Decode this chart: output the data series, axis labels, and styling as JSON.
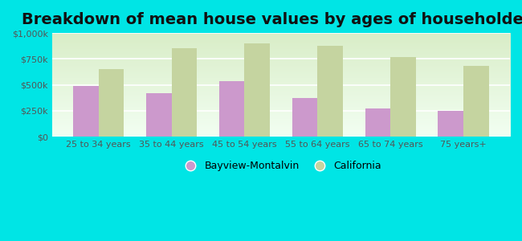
{
  "title": "Breakdown of mean house values by ages of householders",
  "categories": [
    "25 to 34 years",
    "35 to 44 years",
    "45 to 54 years",
    "55 to 64 years",
    "65 to 74 years",
    "75 years+"
  ],
  "bayview": [
    490000,
    420000,
    540000,
    370000,
    270000,
    250000
  ],
  "california": [
    650000,
    850000,
    900000,
    880000,
    770000,
    680000
  ],
  "bayview_color": "#cc99cc",
  "california_color": "#c5d4a0",
  "background_outer": "#00e5e5",
  "title_fontsize": 14,
  "ylabel_ticks": [
    "$0",
    "$250k",
    "$500k",
    "$750k",
    "$1,000k"
  ],
  "ytick_vals": [
    0,
    250000,
    500000,
    750000,
    1000000
  ],
  "ylim": [
    0,
    1000000
  ],
  "legend_labels": [
    "Bayview-Montalvin",
    "California"
  ],
  "bar_width": 0.35
}
